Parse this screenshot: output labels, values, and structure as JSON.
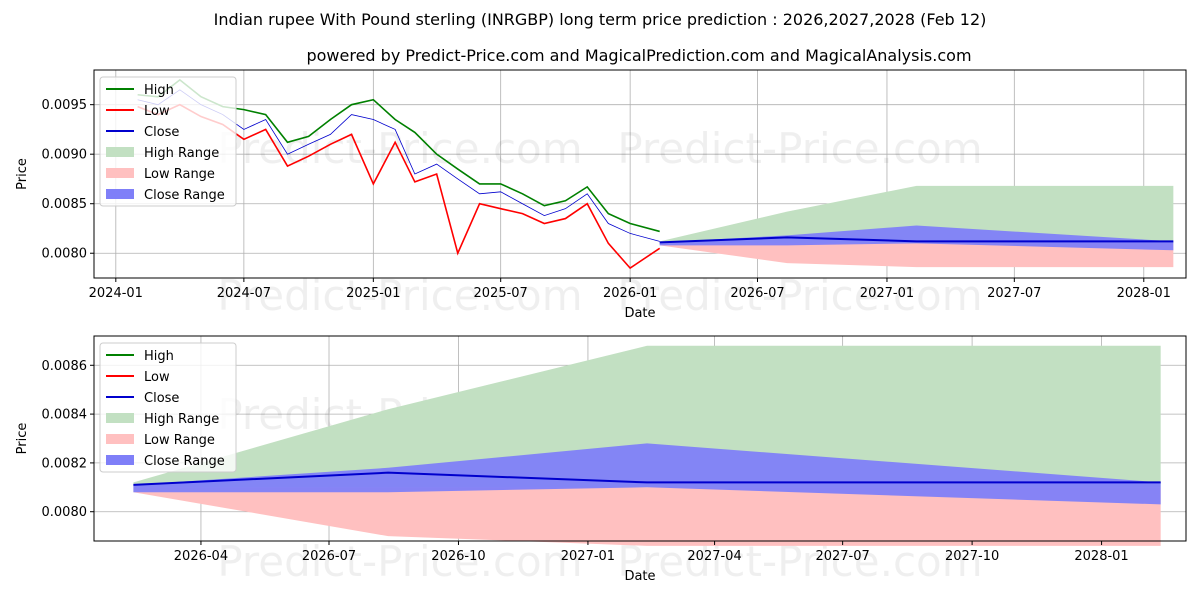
{
  "title": "Indian rupee With Pound sterling (INRGBP) long term price prediction : 2026,2027,2028 (Feb 12)",
  "subtitle": "powered by Predict-Price.com and MagicalPrediction.com and MagicalAnalysis.com",
  "watermark": "Predict-Price.com",
  "legend": [
    "High",
    "Low",
    "Close",
    "High Range",
    "Low Range",
    "Close Range"
  ],
  "colors": {
    "high": "#008000",
    "low": "#ff0000",
    "close": "#0000cd",
    "high_range": "#c2e0c2",
    "low_range": "#ffc0c0",
    "close_range": "#7f7ff8"
  },
  "chart_data": [
    {
      "type": "line",
      "title": "historical + long term prediction",
      "xlabel": "Date",
      "ylabel": "Price",
      "xlim": [
        "2023-12-01",
        "2028-03-01"
      ],
      "ylim": [
        0.00775,
        0.00985
      ],
      "xticks": [
        "2024-01",
        "2024-07",
        "2025-01",
        "2025-07",
        "2026-01",
        "2026-07",
        "2027-01",
        "2027-07",
        "2028-01"
      ],
      "yticks": [
        "0.0080",
        "0.0085",
        "0.0090",
        "0.0095"
      ],
      "history": {
        "x": [
          "2024-02-01",
          "2024-03-01",
          "2024-04-01",
          "2024-05-01",
          "2024-06-01",
          "2024-07-01",
          "2024-08-01",
          "2024-09-01",
          "2024-10-01",
          "2024-11-01",
          "2024-12-01",
          "2025-01-01",
          "2025-02-01",
          "2025-03-01",
          "2025-04-01",
          "2025-05-01",
          "2025-06-01",
          "2025-07-01",
          "2025-08-01",
          "2025-09-01",
          "2025-10-01",
          "2025-11-01",
          "2025-12-01",
          "2026-01-01",
          "2026-02-12"
        ],
        "close": [
          0.00955,
          0.0095,
          0.00965,
          0.0095,
          0.0094,
          0.00925,
          0.00935,
          0.009,
          0.0091,
          0.0092,
          0.0094,
          0.00935,
          0.00925,
          0.0088,
          0.0089,
          0.00875,
          0.0086,
          0.00862,
          0.0085,
          0.00838,
          0.00845,
          0.0086,
          0.0083,
          0.0082,
          0.00812
        ],
        "high": [
          0.0096,
          0.00958,
          0.00975,
          0.00958,
          0.00948,
          0.00945,
          0.0094,
          0.00912,
          0.00918,
          0.00935,
          0.0095,
          0.00955,
          0.00935,
          0.00922,
          0.009,
          0.00885,
          0.0087,
          0.0087,
          0.0086,
          0.00848,
          0.00853,
          0.00867,
          0.0084,
          0.0083,
          0.00822
        ],
        "low": [
          0.00948,
          0.0094,
          0.0095,
          0.00938,
          0.0093,
          0.00915,
          0.00925,
          0.00888,
          0.00898,
          0.0091,
          0.0092,
          0.0087,
          0.00912,
          0.00872,
          0.0088,
          0.008,
          0.0085,
          0.00845,
          0.0084,
          0.0083,
          0.00835,
          0.0085,
          0.0081,
          0.00785,
          0.00805
        ]
      },
      "forecast": {
        "x": [
          "2026-02-12",
          "2026-08-12",
          "2027-02-12",
          "2028-02-12"
        ],
        "close": [
          0.00811,
          0.00816,
          0.00812,
          0.00812
        ],
        "high_range": {
          "upper": [
            0.00812,
            0.00842,
            0.00868,
            0.00868
          ],
          "lower": [
            0.0081,
            0.0081,
            0.0081,
            0.0081
          ]
        },
        "low_range": {
          "upper": [
            0.0081,
            0.0081,
            0.0081,
            0.0081
          ],
          "lower": [
            0.00808,
            0.0079,
            0.00786,
            0.00786
          ]
        },
        "close_range": {
          "upper": [
            0.00811,
            0.00818,
            0.00828,
            0.00812
          ],
          "lower": [
            0.00808,
            0.00808,
            0.0081,
            0.00803
          ]
        }
      }
    },
    {
      "type": "line",
      "title": "prediction detail",
      "xlabel": "Date",
      "ylabel": "Price",
      "xlim": [
        "2026-01-15",
        "2028-03-01"
      ],
      "ylim": [
        0.00788,
        0.00872
      ],
      "xticks": [
        "2026-04",
        "2026-07",
        "2026-10",
        "2027-01",
        "2027-04",
        "2027-07",
        "2027-10",
        "2028-01"
      ],
      "yticks": [
        "0.0080",
        "0.0082",
        "0.0084",
        "0.0086"
      ],
      "forecast": {
        "x": [
          "2026-02-12",
          "2026-08-12",
          "2027-02-12",
          "2028-02-12"
        ],
        "close": [
          0.00811,
          0.00816,
          0.00812,
          0.00812
        ],
        "high_range": {
          "upper": [
            0.00812,
            0.00842,
            0.00868,
            0.00868
          ],
          "lower": [
            0.0081,
            0.0081,
            0.0081,
            0.0081
          ]
        },
        "low_range": {
          "upper": [
            0.0081,
            0.0081,
            0.0081,
            0.0081
          ],
          "lower": [
            0.00808,
            0.0079,
            0.00786,
            0.00786
          ]
        },
        "close_range": {
          "upper": [
            0.00811,
            0.00818,
            0.00828,
            0.00812
          ],
          "lower": [
            0.00808,
            0.00808,
            0.0081,
            0.00803
          ]
        }
      }
    }
  ]
}
